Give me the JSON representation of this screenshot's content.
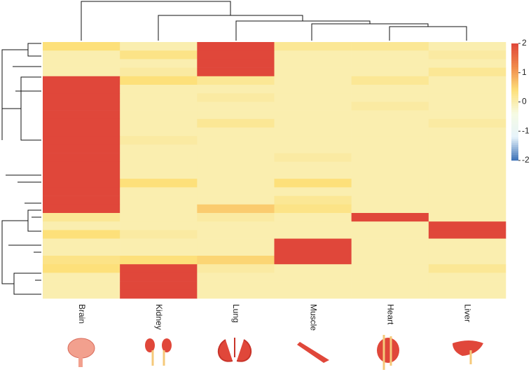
{
  "chart_data": {
    "type": "heatmap",
    "categories": [
      "Brain",
      "Kidney",
      "Lung",
      "Muscle",
      "Heart",
      "Liver"
    ],
    "values": [
      [
        0.4,
        0,
        2,
        0.2,
        0.2,
        0
      ],
      [
        0,
        0.3,
        2,
        0,
        0,
        0.1
      ],
      [
        0,
        0,
        2,
        0,
        0,
        0
      ],
      [
        0,
        0.1,
        2,
        0,
        0,
        0.2
      ],
      [
        2,
        0.4,
        0.2,
        0,
        0.2,
        0
      ],
      [
        2,
        0,
        0,
        0,
        0,
        0
      ],
      [
        2,
        0,
        0.1,
        0,
        0,
        0
      ],
      [
        2,
        0,
        0,
        0,
        0.1,
        0
      ],
      [
        2,
        0,
        0,
        0,
        0,
        0
      ],
      [
        2,
        0,
        0.2,
        0,
        0,
        0.1
      ],
      [
        2,
        0,
        0,
        0,
        0,
        0
      ],
      [
        2,
        0.1,
        0,
        0,
        0,
        0
      ],
      [
        2,
        0,
        0,
        0,
        0,
        0
      ],
      [
        2,
        0,
        0,
        0.1,
        0,
        0
      ],
      [
        2,
        0,
        0,
        0,
        0,
        0
      ],
      [
        2,
        0,
        0,
        0,
        0,
        0
      ],
      [
        2,
        0.4,
        0,
        0.4,
        0,
        0
      ],
      [
        2,
        0,
        0,
        0,
        0,
        0
      ],
      [
        2,
        0,
        0,
        0.2,
        0,
        0
      ],
      [
        2,
        0,
        0.6,
        0.3,
        0,
        0
      ],
      [
        0.2,
        0,
        0.1,
        0,
        2,
        0
      ],
      [
        0,
        0,
        0,
        0,
        0,
        2
      ],
      [
        0.4,
        0.1,
        0,
        0,
        0,
        2
      ],
      [
        0,
        0,
        0,
        2,
        0,
        0
      ],
      [
        0,
        0,
        0,
        2,
        0,
        0
      ],
      [
        0.3,
        0.4,
        0.5,
        2,
        0,
        0
      ],
      [
        0.4,
        2,
        0.1,
        0,
        0,
        0.2
      ],
      [
        0,
        2,
        0,
        0,
        0,
        0
      ],
      [
        0,
        2,
        0,
        0,
        0,
        0
      ],
      [
        0,
        2,
        0,
        0,
        0,
        0
      ]
    ],
    "zlim": [
      -2,
      2
    ],
    "zticks": [
      2,
      1,
      0,
      -1,
      -2
    ],
    "colorscale": [
      "#3a6fb5",
      "#e6f3fb",
      "#f6fbe4",
      "#fde07a",
      "#f08a4b",
      "#e0473a"
    ]
  }
}
